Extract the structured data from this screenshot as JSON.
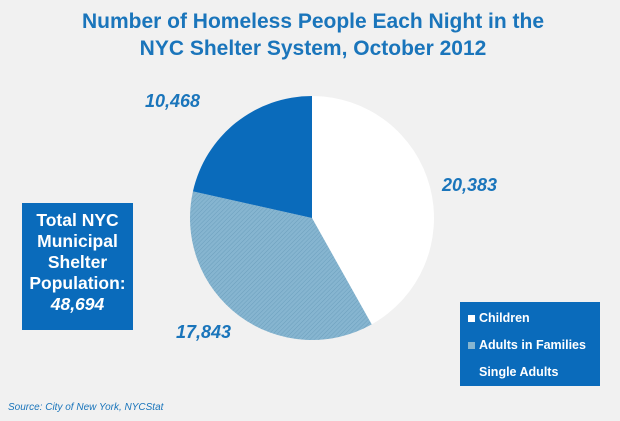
{
  "chart_data": {
    "type": "pie",
    "title_lines": [
      "Number of Homeless People Each Night in the",
      "NYC Shelter System, October 2012"
    ],
    "slices": [
      {
        "name": "Children",
        "value": 20383,
        "label": "20,383",
        "color": "#ffffff"
      },
      {
        "name": "Adults in Families",
        "value": 17843,
        "label": "17,843",
        "color": "#7fb0cc"
      },
      {
        "name": "Single Adults",
        "value": 10468,
        "label": "10,468",
        "color": "#0a6bbb"
      }
    ],
    "legend_placement": "bottom-right",
    "start_angle": "12 o'clock, clockwise"
  },
  "total_box": {
    "lines": [
      "Total NYC",
      "Municipal",
      "Shelter",
      "Population:"
    ],
    "value": "48,694"
  },
  "source": "Source:  City of New York, NYCStat"
}
